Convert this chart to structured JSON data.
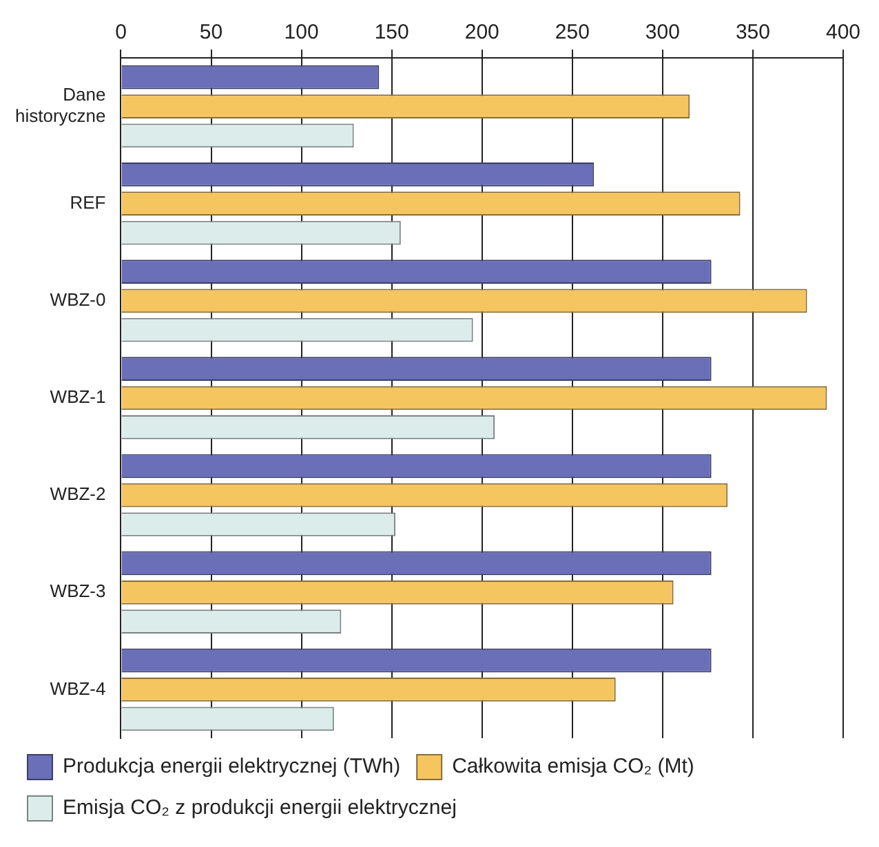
{
  "chart_data": {
    "type": "bar",
    "orientation": "horizontal",
    "categories": [
      "Dane historyczne",
      "REF",
      "WBZ-0",
      "WBZ-1",
      "WBZ-2",
      "WBZ-3",
      "WBZ-4"
    ],
    "series": [
      {
        "name": "Produkcja energii elektrycznej (TWh)",
        "color": "#6a6fb8",
        "values": [
          143,
          262,
          327,
          327,
          327,
          327,
          327
        ]
      },
      {
        "name": "Całkowita emisja CO₂ (Mt)",
        "color": "#f5c560",
        "values": [
          315,
          343,
          380,
          391,
          336,
          306,
          274
        ]
      },
      {
        "name": "Emisja CO₂ z produkcji energii elektrycznej",
        "color": "#dcecea",
        "values": [
          129,
          155,
          195,
          207,
          152,
          122,
          118
        ]
      }
    ],
    "xlim": [
      0,
      400
    ],
    "xticks": [
      0,
      50,
      100,
      150,
      200,
      250,
      300,
      350,
      400
    ],
    "grid": "x",
    "legend": "bottom"
  }
}
